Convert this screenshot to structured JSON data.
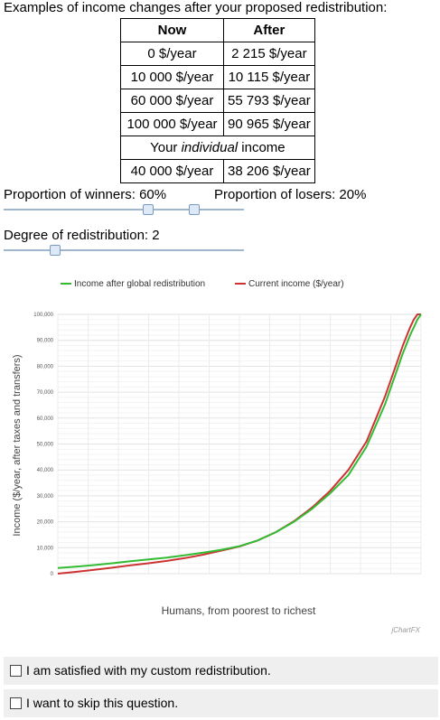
{
  "intro": "Examples of income changes after your proposed redistribution:",
  "table": {
    "headers": [
      "Now",
      "After"
    ],
    "rows": [
      [
        "0 $/year",
        "2 215 $/year"
      ],
      [
        "10 000 $/year",
        "10 115 $/year"
      ],
      [
        "60 000 $/year",
        "55 793 $/year"
      ],
      [
        "100 000 $/year",
        "90 965 $/year"
      ]
    ],
    "individual_label_pre": "Your ",
    "individual_label_em": "individual",
    "individual_label_post": " income",
    "individual_row": [
      "40 000 $/year",
      "38 206 $/year"
    ]
  },
  "sliders": {
    "winners_label": "Proportion of winners: 60%",
    "losers_label": "Proportion of losers: 20%",
    "winners_value": 0.6,
    "losers_value": 0.2,
    "degree_label": "Degree of redistribution: 2",
    "degree_value": 2
  },
  "chart_data": {
    "type": "line",
    "xlabel": "Humans, from poorest to richest",
    "ylabel": "Income ($/year, after taxes and transfers)",
    "ylim": [
      0,
      100000
    ],
    "yticks": [
      "0",
      "10,000",
      "20,000",
      "30,000",
      "40,000",
      "50,000",
      "60,000",
      "70,000",
      "80,000",
      "90,000",
      "100,000"
    ],
    "grid": true,
    "legend_position": "top",
    "credit": "jChartFX",
    "series": [
      {
        "name": "Income after global redistribution",
        "color": "#33bb33",
        "x": [
          0,
          0.05,
          0.1,
          0.15,
          0.2,
          0.25,
          0.3,
          0.35,
          0.4,
          0.45,
          0.5,
          0.55,
          0.6,
          0.65,
          0.7,
          0.75,
          0.8,
          0.85,
          0.9,
          0.93,
          0.95,
          0.97,
          0.98,
          0.99,
          1.0
        ],
        "y": [
          2200,
          2700,
          3300,
          4000,
          4800,
          5500,
          6200,
          7100,
          8100,
          9200,
          10600,
          12800,
          16000,
          20000,
          25000,
          31000,
          38000,
          49000,
          65000,
          77000,
          85000,
          92000,
          95000,
          98000,
          100000
        ]
      },
      {
        "name": "Current income ($/year)",
        "color": "#cc3333",
        "x": [
          0,
          0.05,
          0.1,
          0.15,
          0.2,
          0.25,
          0.3,
          0.35,
          0.4,
          0.45,
          0.5,
          0.55,
          0.6,
          0.65,
          0.7,
          0.75,
          0.8,
          0.85,
          0.9,
          0.93,
          0.95,
          0.97,
          0.98,
          0.99,
          1.0
        ],
        "y": [
          0,
          700,
          1500,
          2300,
          3200,
          4000,
          4900,
          6000,
          7300,
          8900,
          10500,
          12800,
          16000,
          20200,
          25500,
          32000,
          40000,
          51000,
          68000,
          80000,
          88000,
          95000,
          98000,
          100000,
          100000
        ]
      }
    ]
  },
  "options": [
    "I am satisfied with my custom redistribution.",
    "I want to skip this question."
  ]
}
